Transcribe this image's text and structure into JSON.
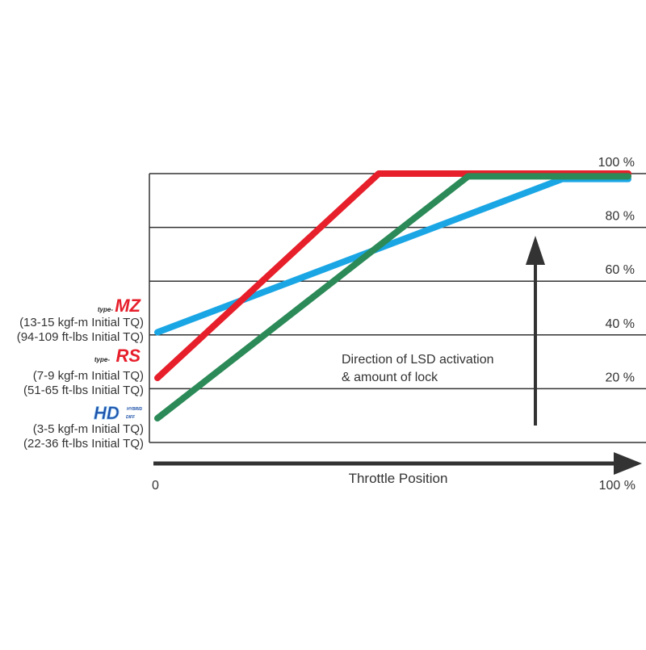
{
  "chart_data": {
    "type": "line",
    "title": "",
    "xlabel": "Throttle Position",
    "x_tick_labels": [
      "0",
      "100 %"
    ],
    "y_tick_labels": [
      "20 %",
      "40 %",
      "60 %",
      "80 %",
      "100 %"
    ],
    "xlim": [
      0,
      100
    ],
    "ylim": [
      0,
      100
    ],
    "grid": true,
    "annotation": [
      "Direction of LSD activation",
      "& amount of lock"
    ],
    "series": [
      {
        "legend_logo": "type-MZ",
        "color": "#1aa6e4",
        "x": [
          0,
          86,
          100
        ],
        "y": [
          41,
          98,
          98
        ]
      },
      {
        "legend_logo": "type-RS",
        "color": "#e61f2b",
        "x": [
          0,
          47,
          100
        ],
        "y": [
          24,
          100,
          100
        ]
      },
      {
        "legend_logo": "HYBRID HD DIFF",
        "color": "#2b8a57",
        "x": [
          0,
          66,
          100
        ],
        "y": [
          9,
          99,
          99
        ]
      }
    ]
  },
  "legend": [
    {
      "logo_prefix": "type-",
      "logo_main": "MZ",
      "line1": "(13-15 kgf-m Initial TQ)",
      "line2": "(94-109 ft-lbs Initial TQ)"
    },
    {
      "logo_prefix": "type-",
      "logo_main": "RS",
      "line1": "(7-9 kgf-m Initial TQ)",
      "line2": "(51-65 ft-lbs Initial TQ)"
    },
    {
      "logo_prefix": "HYBRID",
      "logo_main": "HD",
      "logo_suffix": "DIFF",
      "line1": "(3-5 kgf-m Initial TQ)",
      "line2": "(22-36 ft-lbs Initial TQ)"
    }
  ]
}
